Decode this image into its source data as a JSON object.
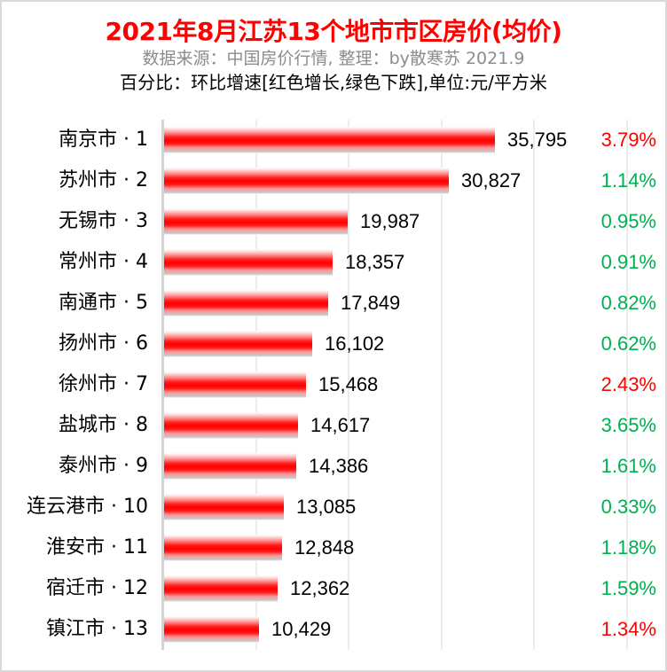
{
  "title": "2021年8月江苏13个地市市区房价(均价)",
  "subtitle": "数据来源：中国房价行情, 整理：by散寒苏  2021.9",
  "note": "百分比：环比增速[红色增长,绿色下跌],单位:元/平方米",
  "colors": {
    "title": "#ff0000",
    "bar": "#ff0000",
    "increase": "#ff0000",
    "decrease": "#00b050",
    "subtitle": "#8c8c8c",
    "grid": "#ececec"
  },
  "rows": [
    {
      "label": "南京市 · 1",
      "value": "35,795",
      "pct": "3.79%",
      "trend": "up"
    },
    {
      "label": "苏州市 · 2",
      "value": "30,827",
      "pct": "1.14%",
      "trend": "down"
    },
    {
      "label": "无锡市 · 3",
      "value": "19,987",
      "pct": "0.95%",
      "trend": "down"
    },
    {
      "label": "常州市 · 4",
      "value": "18,357",
      "pct": "0.91%",
      "trend": "down"
    },
    {
      "label": "南通市 · 5",
      "value": "17,849",
      "pct": "0.82%",
      "trend": "down"
    },
    {
      "label": "扬州市 · 6",
      "value": "16,102",
      "pct": "0.62%",
      "trend": "down"
    },
    {
      "label": "徐州市 · 7",
      "value": "15,468",
      "pct": "2.43%",
      "trend": "up"
    },
    {
      "label": "盐城市 · 8",
      "value": "14,617",
      "pct": "3.65%",
      "trend": "down"
    },
    {
      "label": "泰州市 · 9",
      "value": "14,386",
      "pct": "1.61%",
      "trend": "down"
    },
    {
      "label": "连云港市 · 10",
      "value": "13,085",
      "pct": "0.33%",
      "trend": "down"
    },
    {
      "label": "淮安市 · 11",
      "value": "12,848",
      "pct": "1.18%",
      "trend": "down"
    },
    {
      "label": "宿迁市 · 12",
      "value": "12,362",
      "pct": "1.59%",
      "trend": "down"
    },
    {
      "label": "镇江市 · 13",
      "value": "10,429",
      "pct": "1.34%",
      "trend": "up"
    }
  ],
  "chart_data": {
    "type": "bar",
    "orientation": "horizontal",
    "title": "2021年8月江苏13个地市市区房价(均价)",
    "subtitle": "数据来源：中国房价行情, 整理：by散寒苏  2021.9",
    "annotation": "百分比：环比增速[红色增长,绿色下跌],单位:元/平方米",
    "categories": [
      "南京市 · 1",
      "苏州市 · 2",
      "无锡市 · 3",
      "常州市 · 4",
      "南通市 · 5",
      "扬州市 · 6",
      "徐州市 · 7",
      "盐城市 · 8",
      "泰州市 · 9",
      "连云港市 · 10",
      "淮安市 · 11",
      "宿迁市 · 12",
      "镇江市 · 13"
    ],
    "series": [
      {
        "name": "均价(元/平方米)",
        "values": [
          35795,
          30827,
          19987,
          18357,
          17849,
          16102,
          15468,
          14617,
          14386,
          13085,
          12848,
          12362,
          10429
        ]
      },
      {
        "name": "环比增速(%)",
        "values": [
          3.79,
          1.14,
          0.95,
          0.91,
          0.82,
          0.62,
          2.43,
          3.65,
          1.61,
          0.33,
          1.18,
          1.59,
          1.34
        ],
        "colors": [
          "red",
          "green",
          "green",
          "green",
          "green",
          "green",
          "red",
          "green",
          "green",
          "green",
          "green",
          "green",
          "red"
        ]
      }
    ],
    "xlabel": "",
    "ylabel": "",
    "xlim": [
      0,
      50000
    ],
    "grid": {
      "vertical": true,
      "step": 10000
    },
    "x_axis_ticks_visible": false,
    "legend": null
  }
}
